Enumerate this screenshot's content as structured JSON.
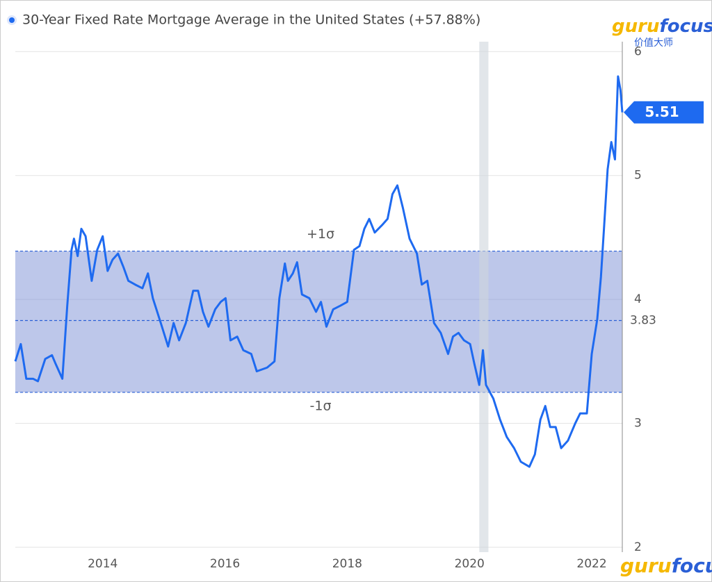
{
  "chart_data": {
    "type": "line",
    "title": "30-Year Fixed Rate Mortgage Average in the United States (+57.88%)",
    "color": "#1e6af0",
    "x": [
      2012.57,
      2012.66,
      2012.75,
      2012.86,
      2012.94,
      2013.06,
      2013.17,
      2013.23,
      2013.34,
      2013.42,
      2013.49,
      2013.53,
      2013.59,
      2013.65,
      2013.72,
      2013.82,
      2013.91,
      2014.0,
      2014.08,
      2014.16,
      2014.25,
      2014.34,
      2014.42,
      2014.53,
      2014.65,
      2014.74,
      2014.82,
      2014.95,
      2015.07,
      2015.16,
      2015.25,
      2015.36,
      2015.48,
      2015.56,
      2015.64,
      2015.73,
      2015.84,
      2015.93,
      2016.01,
      2016.09,
      2016.2,
      2016.3,
      2016.43,
      2016.52,
      2016.69,
      2016.81,
      2016.89,
      2016.98,
      2017.03,
      2017.11,
      2017.18,
      2017.26,
      2017.38,
      2017.49,
      2017.57,
      2017.66,
      2017.77,
      2017.89,
      2018.0,
      2018.11,
      2018.2,
      2018.28,
      2018.36,
      2018.45,
      2018.57,
      2018.66,
      2018.74,
      2018.82,
      2018.91,
      2019.02,
      2019.14,
      2019.22,
      2019.31,
      2019.42,
      2019.53,
      2019.65,
      2019.73,
      2019.82,
      2019.91,
      2020.01,
      2020.08,
      2020.16,
      2020.22,
      2020.27,
      2020.39,
      2020.5,
      2020.61,
      2020.73,
      2020.84,
      2020.98,
      2021.07,
      2021.16,
      2021.24,
      2021.32,
      2021.41,
      2021.5,
      2021.61,
      2021.73,
      2021.81,
      2021.92,
      2022.0,
      2022.09,
      2022.15,
      2022.2,
      2022.26,
      2022.32,
      2022.38,
      2022.43,
      2022.47,
      2022.5
    ],
    "values": [
      3.5,
      3.64,
      3.36,
      3.36,
      3.34,
      3.52,
      3.55,
      3.48,
      3.36,
      3.95,
      4.4,
      4.49,
      4.35,
      4.57,
      4.51,
      4.15,
      4.4,
      4.51,
      4.23,
      4.32,
      4.37,
      4.26,
      4.15,
      4.12,
      4.09,
      4.21,
      4.01,
      3.81,
      3.62,
      3.81,
      3.67,
      3.81,
      4.07,
      4.07,
      3.9,
      3.78,
      3.92,
      3.98,
      4.01,
      3.67,
      3.7,
      3.59,
      3.56,
      3.42,
      3.45,
      3.5,
      4.01,
      4.29,
      4.15,
      4.21,
      4.3,
      4.04,
      4.01,
      3.9,
      3.98,
      3.78,
      3.92,
      3.95,
      3.98,
      4.4,
      4.43,
      4.57,
      4.65,
      4.54,
      4.6,
      4.65,
      4.85,
      4.92,
      4.74,
      4.49,
      4.37,
      4.12,
      4.15,
      3.81,
      3.73,
      3.56,
      3.7,
      3.73,
      3.67,
      3.64,
      3.48,
      3.31,
      3.59,
      3.31,
      3.2,
      3.03,
      2.89,
      2.8,
      2.69,
      2.65,
      2.75,
      3.03,
      3.14,
      2.97,
      2.97,
      2.8,
      2.86,
      3.0,
      3.08,
      3.08,
      3.56,
      3.84,
      4.18,
      4.57,
      5.05,
      5.27,
      5.13,
      5.8,
      5.69,
      5.51
    ],
    "xlim": [
      2012.57,
      2022.5
    ],
    "xticks": [
      2014,
      2016,
      2018,
      2020,
      2022
    ],
    "ylim": [
      2,
      6.08
    ],
    "yticks": [
      2,
      3,
      4,
      5,
      6
    ],
    "grid": true,
    "bands": {
      "upper": 4.39,
      "mean": 3.83,
      "lower": 3.25,
      "upper_label": "+1σ",
      "lower_label": "-1σ"
    },
    "shaded_x": [
      2020.16,
      2020.31
    ],
    "logo": {
      "part1": "guru",
      "part2": "focus",
      "tagline": "价值大师"
    }
  }
}
